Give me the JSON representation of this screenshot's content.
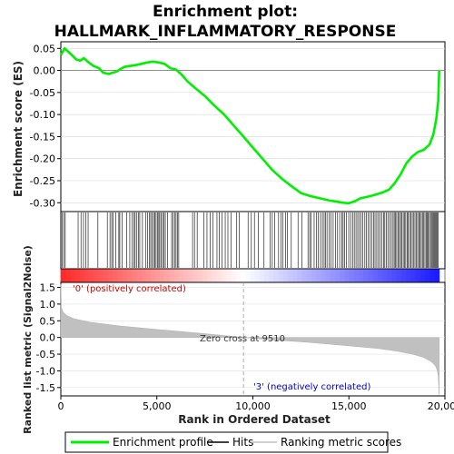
{
  "chart_data": {
    "type": "line",
    "title_line1": "Enrichment plot:",
    "title_line2": "HALLMARK_INFLAMMATORY_RESPONSE",
    "top_panel": {
      "ylabel": "Enrichment score (ES)",
      "ylim": [
        -0.32,
        0.065
      ],
      "yticks": [
        "0.05",
        "0.00",
        "-0.05",
        "-0.10",
        "-0.15",
        "-0.20",
        "-0.25",
        "-0.30"
      ],
      "ytick_values": [
        0.05,
        0.0,
        -0.05,
        -0.1,
        -0.15,
        -0.2,
        -0.25,
        -0.3
      ],
      "series": [
        {
          "name": "Enrichment profile",
          "color": "#00ee00",
          "x": [
            0,
            200,
            500,
            800,
            1000,
            1200,
            1400,
            1700,
            2000,
            2200,
            2500,
            2700,
            2900,
            3100,
            3300,
            3600,
            3900,
            4200,
            4500,
            4800,
            5100,
            5400,
            5700,
            6000,
            6300,
            6600,
            7000,
            7500,
            8000,
            8500,
            9000,
            9510,
            10000,
            10500,
            11000,
            11500,
            12000,
            12500,
            13000,
            13500,
            14000,
            14300,
            14700,
            15000,
            15300,
            15600,
            15900,
            16200,
            16500,
            16800,
            17100,
            17400,
            17700,
            18000,
            18300,
            18600,
            18900,
            19200,
            19400,
            19550,
            19650,
            19700
          ],
          "y": [
            0.035,
            0.05,
            0.038,
            0.025,
            0.022,
            0.028,
            0.02,
            0.01,
            0.005,
            -0.005,
            -0.008,
            -0.005,
            -0.003,
            0.003,
            0.008,
            0.01,
            0.012,
            0.015,
            0.018,
            0.02,
            0.018,
            0.015,
            0.005,
            0.002,
            -0.01,
            -0.025,
            -0.04,
            -0.058,
            -0.08,
            -0.1,
            -0.125,
            -0.15,
            -0.175,
            -0.2,
            -0.225,
            -0.245,
            -0.262,
            -0.278,
            -0.285,
            -0.29,
            -0.295,
            -0.297,
            -0.3,
            -0.301,
            -0.297,
            -0.29,
            -0.287,
            -0.284,
            -0.28,
            -0.276,
            -0.27,
            -0.255,
            -0.235,
            -0.21,
            -0.195,
            -0.185,
            -0.18,
            -0.168,
            -0.145,
            -0.11,
            -0.07,
            0.0
          ]
        }
      ],
      "zero_line": true
    },
    "hits_panel": {
      "legend_name": "Hits",
      "hit_positions": [
        80,
        150,
        230,
        900,
        1050,
        1180,
        1300,
        1420,
        1930,
        2420,
        2560,
        2650,
        2730,
        2870,
        3020,
        3070,
        3200,
        3430,
        3590,
        3720,
        3810,
        3870,
        3960,
        4050,
        4110,
        4250,
        4410,
        4520,
        4600,
        4680,
        4760,
        4830,
        4900,
        4960,
        5040,
        5100,
        5150,
        5220,
        5300,
        5360,
        5440,
        5560,
        5770,
        5850,
        5930,
        6000,
        6070,
        6140,
        6860,
        6960,
        7100,
        7440,
        7610,
        7780,
        7930,
        8130,
        8250,
        8400,
        8560,
        8700,
        8860,
        9160,
        9300,
        9750,
        9920,
        10080,
        10280,
        10580,
        10890,
        11010,
        11130,
        11340,
        11470,
        11570,
        11700,
        11800,
        12000,
        12350,
        12560,
        12870,
        12960,
        13040,
        13190,
        13300,
        13410,
        13520,
        13620,
        13710,
        13790,
        13860,
        13970,
        14060,
        14180,
        14310,
        14410,
        14520,
        14630,
        14700,
        14770,
        14880,
        14990,
        15090,
        15190,
        15280,
        15370,
        15460,
        15550,
        15640,
        15720,
        15830,
        15920,
        16010,
        16100,
        16190,
        16290,
        16360,
        16450,
        16540,
        16630,
        16720,
        16810,
        16870,
        16950,
        17030,
        17120,
        17210,
        17300,
        17360,
        17420,
        17490,
        17560,
        17630,
        17690,
        17760,
        17830,
        17890,
        17960,
        18030,
        18090,
        18160,
        18230,
        18300,
        18380,
        18440,
        18510,
        18580,
        18640,
        18700,
        18770,
        18830,
        18900,
        18960,
        19020,
        19080,
        19130,
        19190,
        19250,
        19300,
        19350,
        19400,
        19450,
        19500,
        19550,
        19600,
        19650
      ]
    },
    "bottom_panel": {
      "ylabel": "Ranked list metric (Signal2Noise)",
      "xlabel": "Rank in Ordered Dataset",
      "ylim": [
        -1.75,
        1.65
      ],
      "yticks": [
        "1.5",
        "1.0",
        "0.5",
        "0.0",
        "-0.5",
        "-1.0",
        "-1.5"
      ],
      "ytick_values": [
        1.5,
        1.0,
        0.5,
        0.0,
        -0.5,
        -1.0,
        -1.5
      ],
      "xlim": [
        0,
        20000
      ],
      "xticks": [
        "0",
        "5,000",
        "10,000",
        "15,000",
        "20,000"
      ],
      "xtick_values": [
        0,
        5000,
        10000,
        15000,
        20000
      ],
      "legend_name": "Ranking metric scores",
      "metric_x": [
        0,
        30,
        100,
        300,
        700,
        1500,
        3000,
        5000,
        7000,
        8500,
        9510,
        11000,
        13000,
        15000,
        16500,
        17500,
        18300,
        18900,
        19300,
        19500,
        19600,
        19650,
        19700
      ],
      "metric_y": [
        1.6,
        0.9,
        0.78,
        0.66,
        0.56,
        0.46,
        0.35,
        0.24,
        0.14,
        0.06,
        0.0,
        -0.07,
        -0.15,
        -0.25,
        -0.33,
        -0.41,
        -0.5,
        -0.6,
        -0.73,
        -0.85,
        -0.98,
        -1.15,
        -1.72
      ],
      "zero_cross_text": "Zero cross at 9510",
      "zero_cross_at": 9510,
      "pos_label": "'0' (positively correlated)",
      "neg_label": "'3' (negatively correlated)",
      "pos_color": "#ff0000",
      "neg_color": "#0000ff"
    },
    "legend": {
      "items": [
        "Enrichment profile",
        "Hits",
        "Ranking metric scores"
      ],
      "colors": [
        "#00ee00",
        "#000000",
        "#c0c0c0"
      ]
    },
    "n_genes": 19700
  }
}
